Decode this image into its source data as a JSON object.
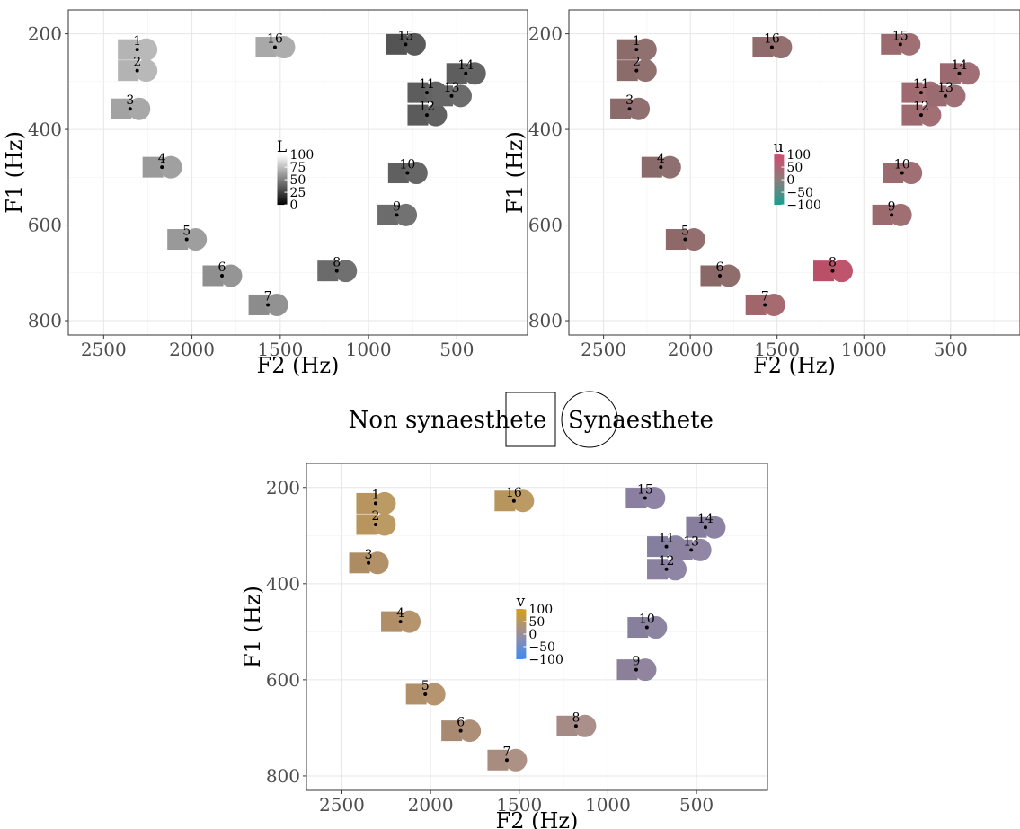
{
  "legend": {
    "square_label": "Non synaesthete",
    "circle_label": "Synaesthete"
  },
  "chart_data": [
    {
      "type": "scatter",
      "xlabel": "F2 (Hz)",
      "ylabel": "F1 (Hz)",
      "x_reversed": true,
      "y_reversed": true,
      "xlim": [
        2700,
        100
      ],
      "ylim": [
        150,
        830
      ],
      "xticks": [
        2500,
        2000,
        1500,
        1000,
        500
      ],
      "yticks": [
        200,
        400,
        600,
        800
      ],
      "grid": true,
      "colorbar": {
        "title": "L",
        "ticks": [
          "100",
          "75",
          "50",
          "25",
          "0"
        ],
        "colors": [
          "#ffffff",
          "#000000"
        ]
      },
      "points": [
        {
          "id": "1",
          "x": 2310,
          "y": 233,
          "sq": "#b4b4b4",
          "ci": "#b9b9b9"
        },
        {
          "id": "2",
          "x": 2310,
          "y": 277,
          "sq": "#b3b3b3",
          "ci": "#b8b8b8"
        },
        {
          "id": "3",
          "x": 2350,
          "y": 357,
          "sq": "#a3a3a3",
          "ci": "#a8a8a8"
        },
        {
          "id": "4",
          "x": 2170,
          "y": 479,
          "sq": "#9a9a9a",
          "ci": "#a0a0a0"
        },
        {
          "id": "5",
          "x": 2030,
          "y": 630,
          "sq": "#999999",
          "ci": "#9e9e9e"
        },
        {
          "id": "6",
          "x": 1830,
          "y": 706,
          "sq": "#8f8f8f",
          "ci": "#959595"
        },
        {
          "id": "7",
          "x": 1570,
          "y": 767,
          "sq": "#8c8c8c",
          "ci": "#929292"
        },
        {
          "id": "8",
          "x": 1180,
          "y": 696,
          "sq": "#6b6b6b",
          "ci": "#707070"
        },
        {
          "id": "9",
          "x": 840,
          "y": 579,
          "sq": "#6c6c6c",
          "ci": "#727272"
        },
        {
          "id": "10",
          "x": 780,
          "y": 491,
          "sq": "#606060",
          "ci": "#666666"
        },
        {
          "id": "11",
          "x": 670,
          "y": 323,
          "sq": "#5d5d5d",
          "ci": "#636363"
        },
        {
          "id": "12",
          "x": 670,
          "y": 370,
          "sq": "#5b5b5b",
          "ci": "#616161"
        },
        {
          "id": "13",
          "x": 530,
          "y": 330,
          "sq": "#666666",
          "ci": "#6c6c6c"
        },
        {
          "id": "14",
          "x": 450,
          "y": 283,
          "sq": "#5e5e5e",
          "ci": "#646464"
        },
        {
          "id": "15",
          "x": 790,
          "y": 222,
          "sq": "#545454",
          "ci": "#5a5a5a"
        },
        {
          "id": "16",
          "x": 1530,
          "y": 228,
          "sq": "#a8a8a8",
          "ci": "#adadad"
        }
      ]
    },
    {
      "type": "scatter",
      "xlabel": "F2 (Hz)",
      "ylabel": "F1 (Hz)",
      "x_reversed": true,
      "y_reversed": true,
      "xlim": [
        2700,
        100
      ],
      "ylim": [
        150,
        830
      ],
      "xticks": [
        2500,
        2000,
        1500,
        1000,
        500
      ],
      "yticks": [
        200,
        400,
        600,
        800
      ],
      "grid": true,
      "colorbar": {
        "title": "u",
        "ticks": [
          "100",
          "50",
          "0",
          "−50",
          "−100"
        ],
        "colors": [
          "#d24a6e",
          "#8c7c7c",
          "#1a9e8e"
        ]
      },
      "points": [
        {
          "id": "1",
          "x": 2310,
          "y": 233,
          "sq": "#8c6b6b",
          "ci": "#917070"
        },
        {
          "id": "2",
          "x": 2310,
          "y": 277,
          "sq": "#8c6b6b",
          "ci": "#917070"
        },
        {
          "id": "3",
          "x": 2350,
          "y": 357,
          "sq": "#8a6a6a",
          "ci": "#8f6f6f"
        },
        {
          "id": "4",
          "x": 2170,
          "y": 479,
          "sq": "#8a6b6b",
          "ci": "#8f7070"
        },
        {
          "id": "5",
          "x": 2030,
          "y": 630,
          "sq": "#8f6969",
          "ci": "#946e6e"
        },
        {
          "id": "6",
          "x": 1830,
          "y": 706,
          "sq": "#8a6868",
          "ci": "#8f6d6d"
        },
        {
          "id": "7",
          "x": 1570,
          "y": 767,
          "sq": "#a0666c",
          "ci": "#a56b71"
        },
        {
          "id": "8",
          "x": 1180,
          "y": 696,
          "sq": "#b95068",
          "ci": "#be556d"
        },
        {
          "id": "9",
          "x": 840,
          "y": 579,
          "sq": "#9a6a6e",
          "ci": "#9f6f73"
        },
        {
          "id": "10",
          "x": 780,
          "y": 491,
          "sq": "#9a6a6e",
          "ci": "#9f6f73"
        },
        {
          "id": "11",
          "x": 670,
          "y": 323,
          "sq": "#9e6a70",
          "ci": "#a36f75"
        },
        {
          "id": "12",
          "x": 670,
          "y": 370,
          "sq": "#9d6a70",
          "ci": "#a26f75"
        },
        {
          "id": "13",
          "x": 530,
          "y": 330,
          "sq": "#9a6b70",
          "ci": "#9f7075"
        },
        {
          "id": "14",
          "x": 450,
          "y": 283,
          "sq": "#9a6a70",
          "ci": "#9f6f75"
        },
        {
          "id": "15",
          "x": 790,
          "y": 222,
          "sq": "#9a6a6f",
          "ci": "#9f6f74"
        },
        {
          "id": "16",
          "x": 1530,
          "y": 228,
          "sq": "#906b6b",
          "ci": "#957070"
        }
      ]
    },
    {
      "type": "scatter",
      "xlabel": "F2 (Hz)",
      "ylabel": "F1 (Hz)",
      "x_reversed": true,
      "y_reversed": true,
      "xlim": [
        2700,
        100
      ],
      "ylim": [
        150,
        830
      ],
      "xticks": [
        2500,
        2000,
        1500,
        1000,
        500
      ],
      "yticks": [
        200,
        400,
        600,
        800
      ],
      "grid": true,
      "colorbar": {
        "title": "v",
        "ticks": [
          "100",
          "50",
          "0",
          "−50",
          "−100"
        ],
        "colors": [
          "#d4a017",
          "#9a8e9e",
          "#3a8cf5"
        ]
      },
      "points": [
        {
          "id": "1",
          "x": 2310,
          "y": 233,
          "sq": "#b8955f",
          "ci": "#bc9a64"
        },
        {
          "id": "2",
          "x": 2310,
          "y": 277,
          "sq": "#b8955f",
          "ci": "#bc9a64"
        },
        {
          "id": "3",
          "x": 2350,
          "y": 357,
          "sq": "#ad8c63",
          "ci": "#b29168"
        },
        {
          "id": "4",
          "x": 2170,
          "y": 479,
          "sq": "#b08f68",
          "ci": "#b5946d"
        },
        {
          "id": "5",
          "x": 2030,
          "y": 630,
          "sq": "#b08f6a",
          "ci": "#b5946f"
        },
        {
          "id": "6",
          "x": 1830,
          "y": 706,
          "sq": "#a88a72",
          "ci": "#ad8f77"
        },
        {
          "id": "7",
          "x": 1570,
          "y": 767,
          "sq": "#a88c80",
          "ci": "#ad9185"
        },
        {
          "id": "8",
          "x": 1180,
          "y": 696,
          "sq": "#a58a85",
          "ci": "#aa8f8a"
        },
        {
          "id": "9",
          "x": 840,
          "y": 579,
          "sq": "#8c7f9a",
          "ci": "#91849f"
        },
        {
          "id": "10",
          "x": 780,
          "y": 491,
          "sq": "#877f9c",
          "ci": "#8c84a1"
        },
        {
          "id": "11",
          "x": 670,
          "y": 323,
          "sq": "#857f9f",
          "ci": "#8a84a4"
        },
        {
          "id": "12",
          "x": 670,
          "y": 370,
          "sq": "#8a80a0",
          "ci": "#8f85a5"
        },
        {
          "id": "13",
          "x": 530,
          "y": 330,
          "sq": "#8c82a0",
          "ci": "#9187a5"
        },
        {
          "id": "14",
          "x": 450,
          "y": 283,
          "sq": "#877d9c",
          "ci": "#8c82a1"
        },
        {
          "id": "15",
          "x": 790,
          "y": 222,
          "sq": "#8a7fa0",
          "ci": "#8f84a5"
        },
        {
          "id": "16",
          "x": 1530,
          "y": 228,
          "sq": "#b8955f",
          "ci": "#bc9a64"
        }
      ]
    }
  ]
}
